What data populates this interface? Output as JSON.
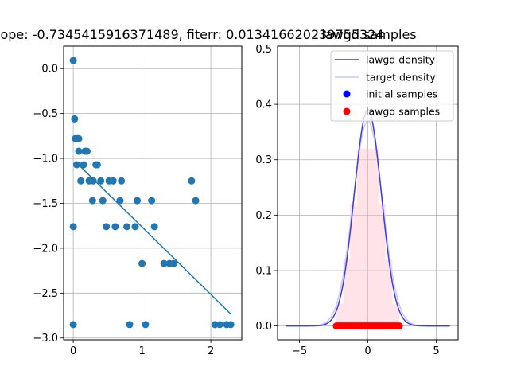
{
  "chart_data": [
    {
      "type": "scatter",
      "title": "lope: -0.7345415916371489, fiterr: 0.013416620239755324",
      "xlabel": "",
      "ylabel": "",
      "xlim": [
        -0.14,
        2.45
      ],
      "ylim": [
        -3.02,
        0.25
      ],
      "xticks": [
        0,
        1,
        2
      ],
      "yticks": [
        0.0,
        -0.5,
        -1.0,
        -1.5,
        -2.0,
        -2.5,
        -3.0
      ],
      "xtick_labels": [
        "0",
        "1",
        "2"
      ],
      "ytick_labels": [
        "0.0",
        "−0.5",
        "−1.0",
        "−1.5",
        "−2.0",
        "−2.5",
        "−3.0"
      ],
      "grid": true,
      "point_color": "#1f77b4",
      "line_color": "#1f77b4",
      "points": [
        [
          0.0,
          0.09
        ],
        [
          0.02,
          -0.56
        ],
        [
          0.03,
          -0.78
        ],
        [
          0.06,
          -0.78
        ],
        [
          0.08,
          -0.78
        ],
        [
          0.05,
          -1.07
        ],
        [
          0.08,
          -0.92
        ],
        [
          0.11,
          -1.25
        ],
        [
          0.15,
          -1.07
        ],
        [
          0.17,
          -0.92
        ],
        [
          0.2,
          -0.92
        ],
        [
          0.23,
          -1.25
        ],
        [
          0.28,
          -1.47
        ],
        [
          0.29,
          -1.25
        ],
        [
          0.33,
          -1.07
        ],
        [
          0.35,
          -1.07
        ],
        [
          0.4,
          -1.25
        ],
        [
          0.43,
          -1.47
        ],
        [
          0.48,
          -1.76
        ],
        [
          0.52,
          -1.25
        ],
        [
          0.58,
          -1.25
        ],
        [
          0.61,
          -1.76
        ],
        [
          0.68,
          -1.47
        ],
        [
          0.7,
          -1.25
        ],
        [
          0.78,
          -1.76
        ],
        [
          0.82,
          -2.85
        ],
        [
          0.9,
          -1.76
        ],
        [
          0.93,
          -1.47
        ],
        [
          1.0,
          -2.17
        ],
        [
          1.05,
          -2.85
        ],
        [
          1.14,
          -1.47
        ],
        [
          1.18,
          -1.76
        ],
        [
          1.32,
          -2.17
        ],
        [
          1.4,
          -2.17
        ],
        [
          1.46,
          -2.17
        ],
        [
          1.72,
          -1.25
        ],
        [
          1.78,
          -1.47
        ],
        [
          2.06,
          -2.85
        ],
        [
          2.13,
          -2.85
        ],
        [
          2.23,
          -2.85
        ],
        [
          2.29,
          -2.85
        ],
        [
          0.0,
          -1.76
        ],
        [
          0.0,
          -2.85
        ]
      ],
      "fit_line": {
        "x": [
          0.05,
          2.3
        ],
        "y": [
          -1.05,
          -2.74
        ]
      }
    },
    {
      "type": "line",
      "title": "lawgd samples",
      "xlabel": "",
      "ylabel": "",
      "xlim": [
        -6.6,
        6.6
      ],
      "ylim": [
        -0.025,
        0.505
      ],
      "xticks": [
        -5,
        0,
        5
      ],
      "yticks": [
        0.0,
        0.1,
        0.2,
        0.3,
        0.4,
        0.5
      ],
      "xtick_labels": [
        "−5",
        "0",
        "5"
      ],
      "ytick_labels": [
        "0.0",
        "0.1",
        "0.2",
        "0.3",
        "0.4",
        "0.5"
      ],
      "grid": true,
      "legend_placement": "top-right",
      "series": [
        {
          "name": "lawgd density",
          "color": "#3d3de0",
          "kind": "line",
          "peak": 0.39,
          "sigma": 1.0,
          "range": [
            -6,
            6
          ]
        },
        {
          "name": "target density",
          "color": "#c9c9f2",
          "kind": "line",
          "peak": 0.37,
          "sigma": 1.08,
          "range": [
            -6,
            6
          ]
        },
        {
          "name": "initial samples",
          "color": "#0000ff",
          "kind": "marker"
        },
        {
          "name": "lawgd samples",
          "color": "#ff0000",
          "kind": "marker",
          "x_range": [
            -2.3,
            2.3
          ],
          "y": 0.0
        }
      ],
      "histogram": {
        "color": "#ffc0cb",
        "opacity": 0.45,
        "bins": [
          {
            "x0": -2.3,
            "x1": -1.8,
            "value": 0.04
          },
          {
            "x0": -1.8,
            "x1": -1.3,
            "value": 0.12
          },
          {
            "x0": -1.3,
            "x1": -0.8,
            "value": 0.22
          },
          {
            "x0": -0.8,
            "x1": -0.4,
            "value": 0.32
          },
          {
            "x0": -0.4,
            "x1": 0.4,
            "value": 0.32
          },
          {
            "x0": 0.4,
            "x1": 0.8,
            "value": 0.32
          },
          {
            "x0": 0.8,
            "x1": 1.3,
            "value": 0.22
          },
          {
            "x0": 1.3,
            "x1": 1.8,
            "value": 0.12
          },
          {
            "x0": 1.8,
            "x1": 2.3,
            "value": 0.04
          }
        ]
      }
    }
  ]
}
